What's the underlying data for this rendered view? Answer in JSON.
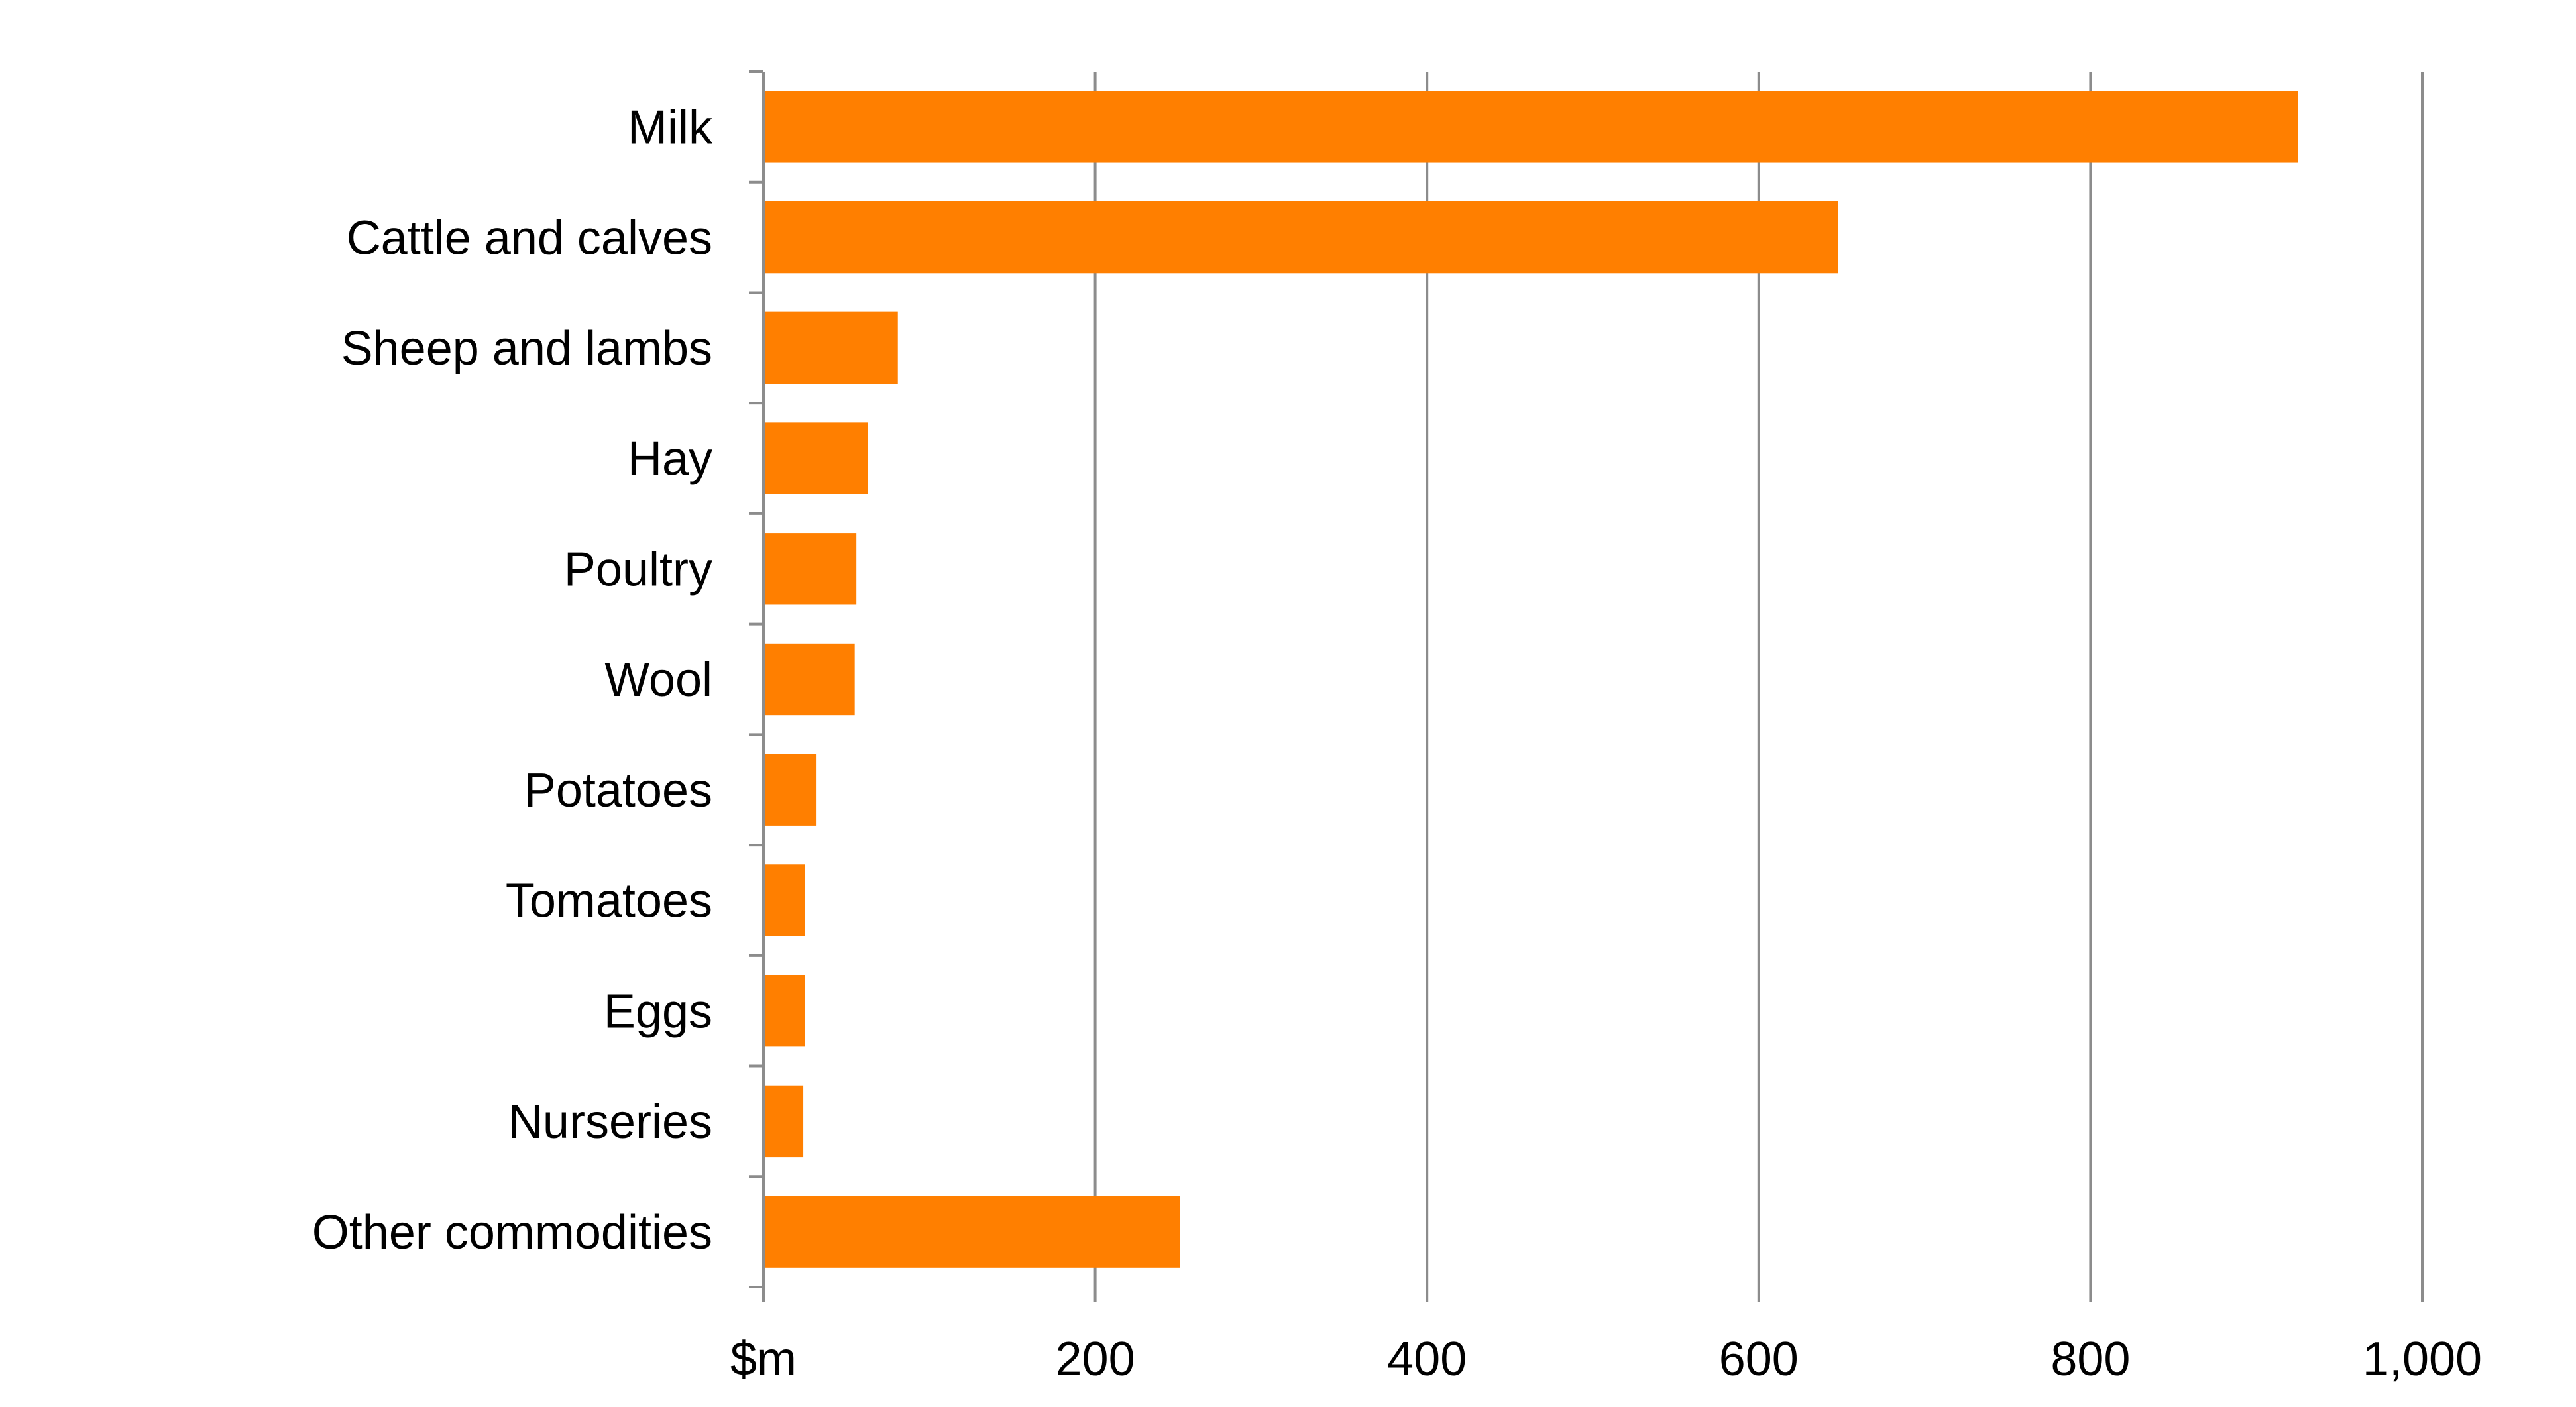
{
  "chart_data": {
    "type": "bar",
    "orientation": "horizontal",
    "categories": [
      "Milk",
      "Cattle and calves",
      "Sheep and lambs",
      "Hay",
      "Poultry",
      "Wool",
      "Potatoes",
      "Tomatoes",
      "Eggs",
      "Nurseries",
      "Other commodities"
    ],
    "values": [
      925,
      648,
      81,
      63,
      56,
      55,
      32,
      25,
      25,
      24,
      251
    ],
    "title": "",
    "xlabel": "$m",
    "ylabel": "",
    "xlim": [
      0,
      1000
    ],
    "x_ticks": [
      200,
      400,
      600,
      800,
      1000
    ],
    "x_tick_labels": [
      "200",
      "400",
      "600",
      "800",
      "1,000"
    ],
    "grid": "vertical",
    "legend": "none",
    "colors": {
      "bar": "#FF7F00",
      "gridline": "#8C8C8C",
      "axis": "#8C8C8C",
      "text": "#000000"
    }
  }
}
